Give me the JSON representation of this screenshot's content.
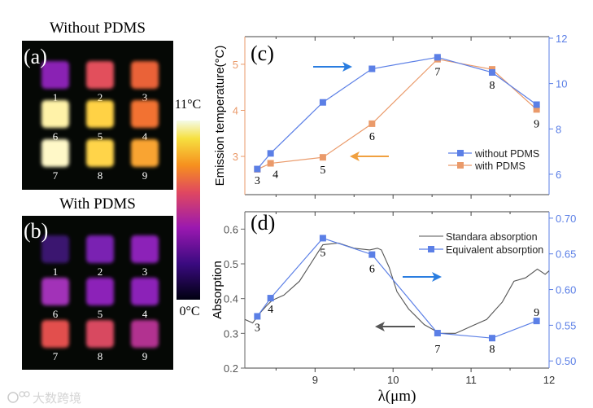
{
  "heatmaps": {
    "a": {
      "title": "Without PDMS",
      "panel_label": "(a)",
      "samples": [
        {
          "label": "1",
          "color": "#8a22b4"
        },
        {
          "label": "2",
          "color": "#e2505c"
        },
        {
          "label": "3",
          "color": "#ea6238"
        },
        {
          "label": "6",
          "color": "#fff2a8"
        },
        {
          "label": "5",
          "color": "#ffd244"
        },
        {
          "label": "4",
          "color": "#f27232"
        },
        {
          "label": "7",
          "color": "#fff8c8"
        },
        {
          "label": "8",
          "color": "#ffd448"
        },
        {
          "label": "9",
          "color": "#f9a432"
        }
      ]
    },
    "b": {
      "title": "With PDMS",
      "panel_label": "(b)",
      "samples": [
        {
          "label": "1",
          "color": "#3a1270"
        },
        {
          "label": "2",
          "color": "#7a22b2"
        },
        {
          "label": "3",
          "color": "#8c22b8"
        },
        {
          "label": "6",
          "color": "#a232b8"
        },
        {
          "label": "5",
          "color": "#8c22b8"
        },
        {
          "label": "4",
          "color": "#8c22b8"
        },
        {
          "label": "7",
          "color": "#e2504e"
        },
        {
          "label": "8",
          "color": "#d84a60"
        },
        {
          "label": "9",
          "color": "#b23290"
        }
      ]
    },
    "colorbar": {
      "max_label": "11°C",
      "min_label": "0°C"
    }
  },
  "watermark": "大数跨境",
  "colors": {
    "blue": "#5b7fe6",
    "orange": "#ea9a6a",
    "orange_axis": "#ea9a6a",
    "gray": "#555555",
    "arrow_blue": "#2a7de0",
    "arrow_orange": "#f0a040",
    "arrow_gray": "#555555"
  },
  "chart_data": [
    {
      "type": "line",
      "panel_label": "(c)",
      "ylabel": "Emission temperature(°C)",
      "xlim": [
        8.1,
        12
      ],
      "ylim_left": [
        2.17,
        5.6
      ],
      "ylim_right": [
        5.1,
        12.07
      ],
      "left_ticks": [
        "3",
        "4",
        "5"
      ],
      "right_ticks": [
        "6",
        "8",
        "10",
        "12"
      ],
      "point_labels": [
        "3",
        "4",
        "5",
        "6",
        "7",
        "8",
        "9"
      ],
      "x": [
        8.26,
        8.43,
        9.1,
        9.73,
        10.57,
        11.27,
        11.84
      ],
      "series": [
        {
          "name": "without PDMS",
          "axis": "right",
          "values": [
            6.23,
            6.92,
            9.17,
            10.65,
            11.16,
            10.49,
            9.07
          ]
        },
        {
          "name": "with PDMS",
          "axis": "left",
          "values": [
            2.72,
            2.85,
            2.98,
            3.71,
            5.11,
            4.89,
            4.02
          ]
        }
      ],
      "legend": "bottom-right"
    },
    {
      "type": "line",
      "panel_label": "(d)",
      "ylabel": "Absorption",
      "xlabel": "λ(μm)",
      "xlim": [
        8.1,
        12
      ],
      "ylim_left": [
        0.2,
        0.65
      ],
      "ylim_right": [
        0.49,
        0.709
      ],
      "x_ticks": [
        "9",
        "10",
        "11",
        "12"
      ],
      "left_ticks": [
        "0.2",
        "0.3",
        "0.4",
        "0.5",
        "0.6"
      ],
      "right_ticks": [
        "0.50",
        "0.55",
        "0.60",
        "0.65",
        "0.70"
      ],
      "point_labels": [
        "3",
        "4",
        "5",
        "6",
        "7",
        "8",
        "9"
      ],
      "x": [
        8.26,
        8.43,
        9.1,
        9.73,
        10.57,
        11.27,
        11.84
      ],
      "series": [
        {
          "name": "Standara absorption",
          "axis": "left",
          "curve_x": [
            8.1,
            8.2,
            8.3,
            8.38,
            8.45,
            8.6,
            8.8,
            9.0,
            9.1,
            9.3,
            9.5,
            9.7,
            9.8,
            9.85,
            9.95,
            10.05,
            10.2,
            10.4,
            10.6,
            10.8,
            10.9,
            11.0,
            11.2,
            11.4,
            11.55,
            11.7,
            11.85,
            11.95,
            12.0
          ],
          "curve_y": [
            0.34,
            0.33,
            0.36,
            0.38,
            0.395,
            0.41,
            0.45,
            0.52,
            0.555,
            0.56,
            0.545,
            0.54,
            0.545,
            0.54,
            0.49,
            0.42,
            0.37,
            0.325,
            0.3,
            0.3,
            0.31,
            0.32,
            0.34,
            0.39,
            0.45,
            0.46,
            0.485,
            0.47,
            0.48
          ]
        },
        {
          "name": "Equivalent absorption",
          "axis": "right",
          "values": [
            0.5625,
            0.588,
            0.672,
            0.649,
            0.539,
            0.532,
            0.556
          ]
        }
      ],
      "legend": "top-right"
    }
  ]
}
